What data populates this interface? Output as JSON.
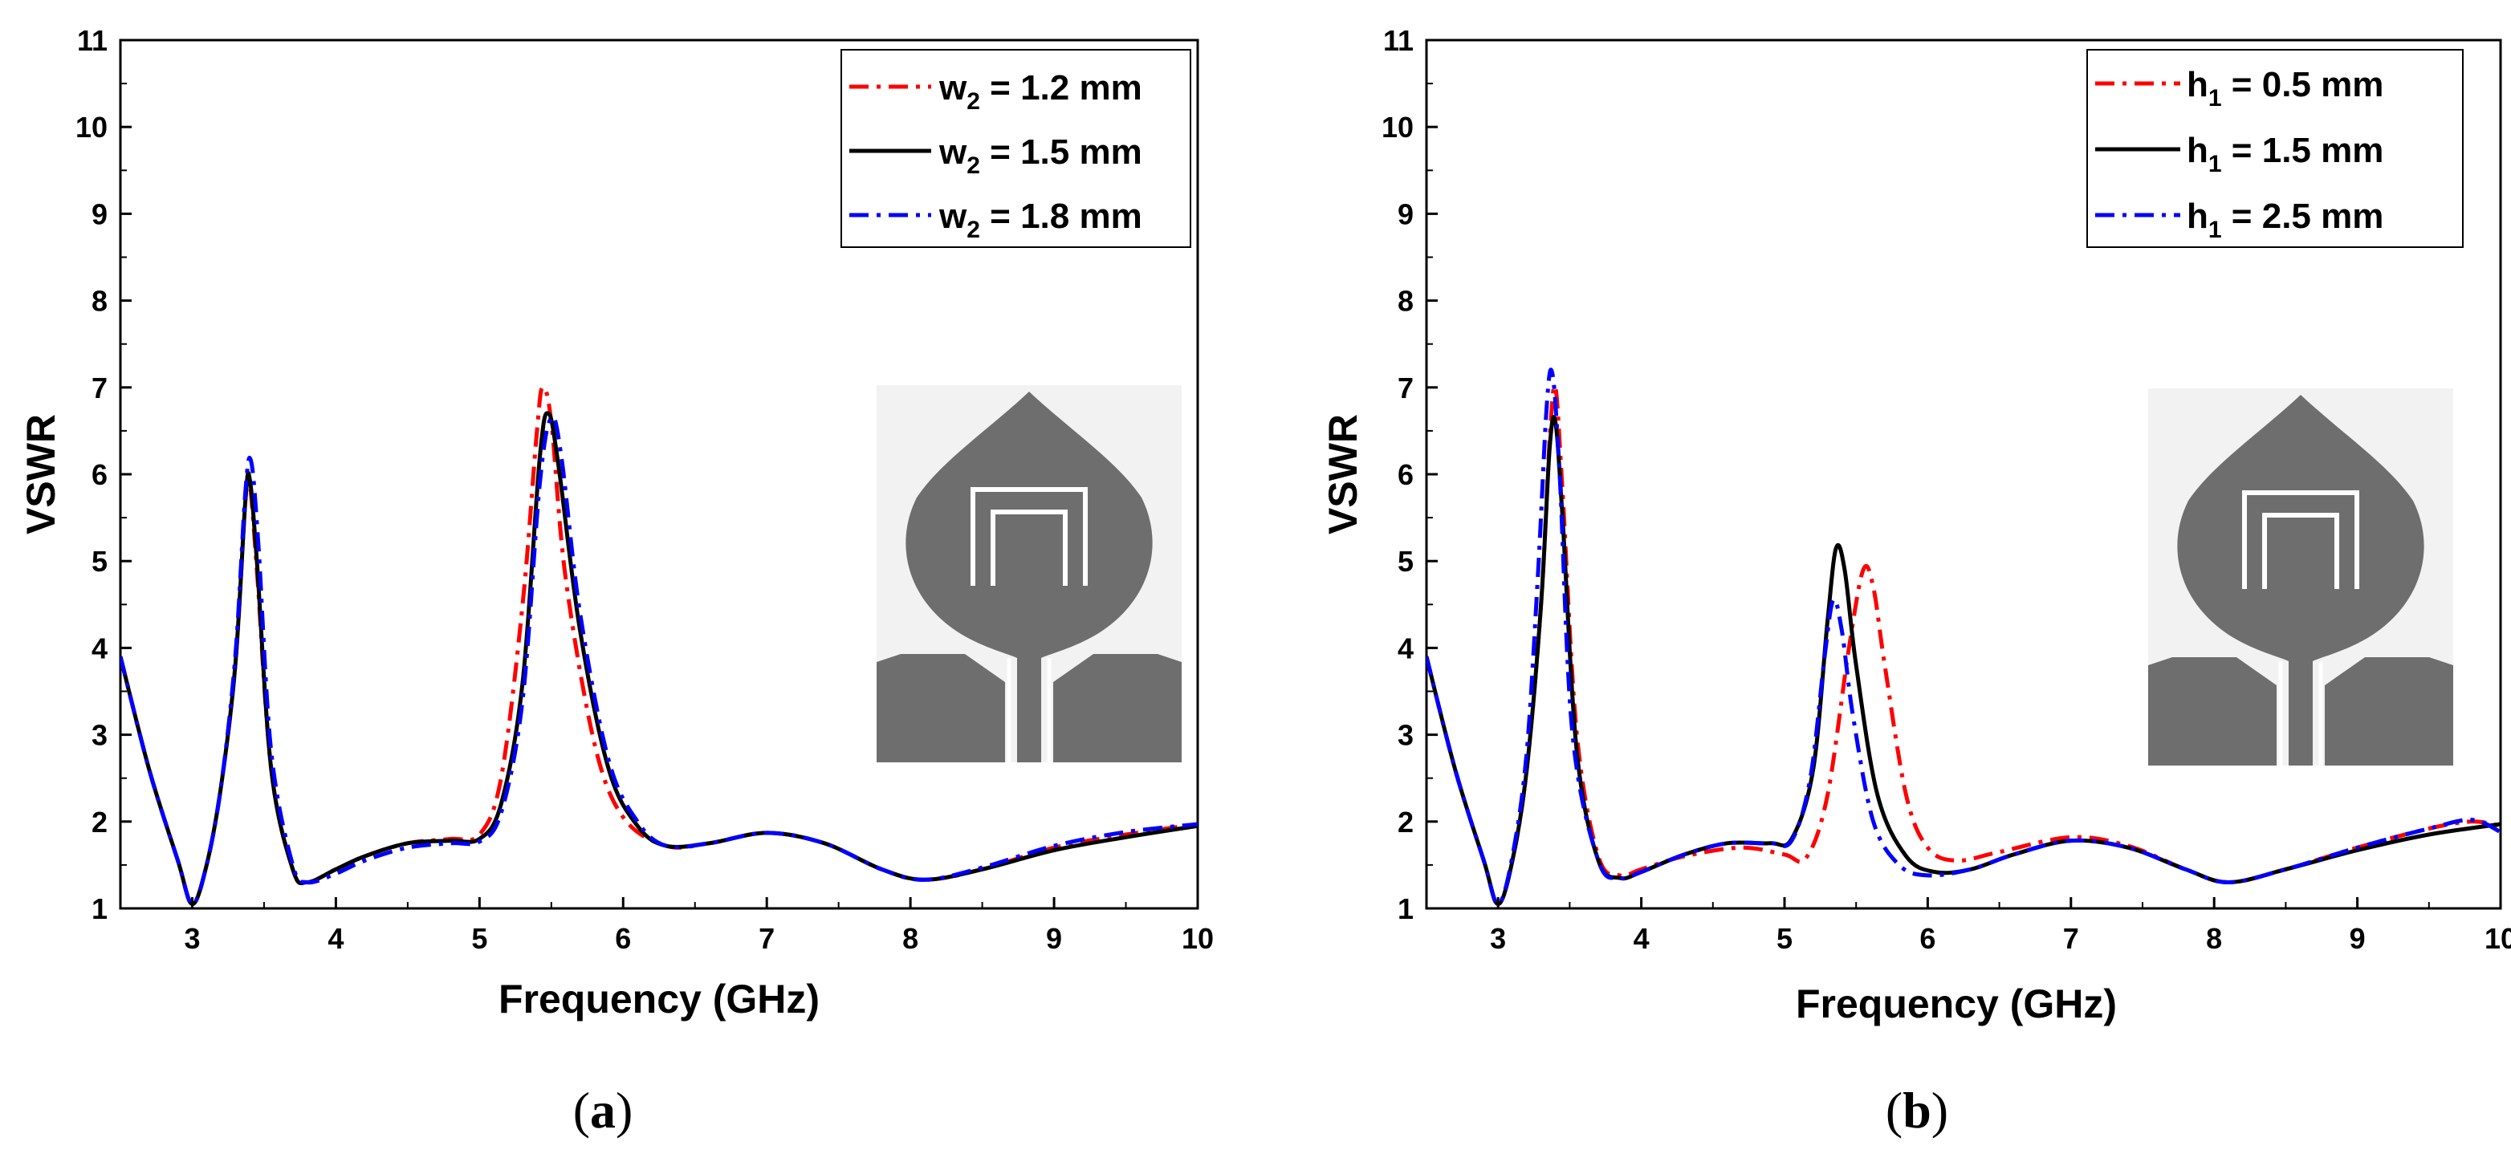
{
  "chart_data": [
    {
      "type": "line",
      "caption_open": "(",
      "caption_letter": "a",
      "caption_close": ")",
      "xlabel": "Frequency (GHz)",
      "ylabel": "VSWR",
      "xlim": [
        2.5,
        10
      ],
      "ylim": [
        1,
        11
      ],
      "xticks": [
        3,
        4,
        5,
        6,
        7,
        8,
        9,
        10
      ],
      "yticks": [
        1,
        2,
        3,
        4,
        5,
        6,
        7,
        8,
        9,
        10,
        11
      ],
      "legend_position": "top-right",
      "inset": "antenna-geometry",
      "series": [
        {
          "name": "w2 = 1.2 mm",
          "legend_main": "w",
          "legend_sub": "2",
          "legend_rest": " = 1.2 mm",
          "color": "#ff0000",
          "style": "dash-dot",
          "x": [
            2.5,
            2.7,
            2.9,
            3.0,
            3.1,
            3.2,
            3.3,
            3.37,
            3.4,
            3.45,
            3.55,
            3.7,
            3.8,
            4.0,
            4.2,
            4.5,
            4.8,
            5.0,
            5.15,
            5.3,
            5.4,
            5.44,
            5.5,
            5.6,
            5.8,
            6.0,
            6.3,
            6.6,
            7.0,
            7.4,
            7.8,
            8.1,
            8.5,
            9.0,
            9.5,
            10.0
          ],
          "y": [
            3.9,
            2.6,
            1.55,
            1.05,
            1.5,
            2.4,
            3.8,
            5.7,
            5.9,
            4.9,
            2.6,
            1.45,
            1.3,
            1.45,
            1.6,
            1.75,
            1.8,
            1.85,
            2.5,
            4.5,
            6.5,
            7.0,
            6.6,
            4.8,
            2.9,
            2.05,
            1.72,
            1.75,
            1.87,
            1.75,
            1.45,
            1.33,
            1.45,
            1.7,
            1.85,
            1.97
          ]
        },
        {
          "name": "w2 = 1.5 mm",
          "legend_main": "w",
          "legend_sub": "2",
          "legend_rest": " = 1.5 mm",
          "color": "#000000",
          "style": "solid",
          "x": [
            2.5,
            2.7,
            2.9,
            3.0,
            3.1,
            3.2,
            3.3,
            3.37,
            3.4,
            3.45,
            3.55,
            3.7,
            3.8,
            4.0,
            4.2,
            4.5,
            4.8,
            5.0,
            5.15,
            5.3,
            5.42,
            5.48,
            5.55,
            5.7,
            5.9,
            6.1,
            6.3,
            6.6,
            7.0,
            7.4,
            7.8,
            8.1,
            8.5,
            9.0,
            9.5,
            10.0
          ],
          "y": [
            3.9,
            2.6,
            1.55,
            1.05,
            1.5,
            2.4,
            3.8,
            5.7,
            5.95,
            5.0,
            2.6,
            1.45,
            1.3,
            1.45,
            1.6,
            1.75,
            1.78,
            1.8,
            2.2,
            3.6,
            6.2,
            6.7,
            6.1,
            4.2,
            2.6,
            1.95,
            1.72,
            1.75,
            1.87,
            1.75,
            1.45,
            1.33,
            1.45,
            1.67,
            1.82,
            1.95
          ]
        },
        {
          "name": "w2 = 1.8 mm",
          "legend_main": "w",
          "legend_sub": "2",
          "legend_rest": " = 1.8 mm",
          "color": "#0000ff",
          "style": "dash-dot",
          "x": [
            2.5,
            2.7,
            2.9,
            3.0,
            3.1,
            3.2,
            3.3,
            3.37,
            3.41,
            3.46,
            3.55,
            3.7,
            3.8,
            4.0,
            4.2,
            4.5,
            4.8,
            5.0,
            5.15,
            5.3,
            5.42,
            5.5,
            5.57,
            5.7,
            5.9,
            6.1,
            6.3,
            6.6,
            7.0,
            7.4,
            7.8,
            8.1,
            8.5,
            9.0,
            9.5,
            10.0
          ],
          "y": [
            3.9,
            2.6,
            1.55,
            1.05,
            1.5,
            2.4,
            3.9,
            5.8,
            6.15,
            5.2,
            2.8,
            1.5,
            1.3,
            1.4,
            1.55,
            1.7,
            1.75,
            1.77,
            2.1,
            3.4,
            5.9,
            6.65,
            6.2,
            4.4,
            2.7,
            2.0,
            1.72,
            1.75,
            1.87,
            1.75,
            1.45,
            1.33,
            1.47,
            1.72,
            1.88,
            1.97
          ]
        }
      ]
    },
    {
      "type": "line",
      "caption_open": "(",
      "caption_letter": "b",
      "caption_close": ")",
      "xlabel": "Frequency (GHz)",
      "ylabel": "VSWR",
      "xlim": [
        2.5,
        10
      ],
      "ylim": [
        1,
        11
      ],
      "xticks": [
        3,
        4,
        5,
        6,
        7,
        8,
        9,
        10
      ],
      "yticks": [
        1,
        2,
        3,
        4,
        5,
        6,
        7,
        8,
        9,
        10,
        11
      ],
      "legend_position": "top-right",
      "inset": "antenna-geometry",
      "series": [
        {
          "name": "h1 = 0.5 mm",
          "legend_main": "h",
          "legend_sub": "1",
          "legend_rest": " = 0.5 mm",
          "color": "#ff0000",
          "style": "dash-dot",
          "x": [
            2.5,
            2.7,
            2.9,
            3.0,
            3.1,
            3.2,
            3.3,
            3.36,
            3.4,
            3.45,
            3.55,
            3.7,
            3.85,
            4.0,
            4.3,
            4.7,
            5.0,
            5.15,
            5.3,
            5.45,
            5.55,
            5.62,
            5.7,
            5.85,
            6.0,
            6.2,
            6.5,
            7.0,
            7.4,
            7.8,
            8.1,
            8.5,
            9.0,
            9.5,
            9.8,
            10.0
          ],
          "y": [
            3.9,
            2.6,
            1.55,
            1.05,
            1.55,
            2.6,
            4.5,
            6.4,
            7.0,
            5.8,
            3.0,
            1.6,
            1.38,
            1.45,
            1.6,
            1.7,
            1.62,
            1.58,
            2.3,
            4.0,
            4.9,
            4.7,
            3.8,
            2.3,
            1.7,
            1.55,
            1.65,
            1.82,
            1.72,
            1.45,
            1.3,
            1.45,
            1.7,
            1.92,
            2.0,
            1.95
          ]
        },
        {
          "name": "h1 = 1.5 mm",
          "legend_main": "h",
          "legend_sub": "1",
          "legend_rest": " = 1.5 mm",
          "color": "#000000",
          "style": "solid",
          "x": [
            2.5,
            2.7,
            2.9,
            3.0,
            3.1,
            3.2,
            3.3,
            3.36,
            3.4,
            3.45,
            3.55,
            3.7,
            3.85,
            4.0,
            4.3,
            4.6,
            4.9,
            5.05,
            5.2,
            5.3,
            5.36,
            5.42,
            5.5,
            5.65,
            5.85,
            6.05,
            6.3,
            6.6,
            7.0,
            7.4,
            7.8,
            8.1,
            8.5,
            9.0,
            9.5,
            10.0
          ],
          "y": [
            3.9,
            2.6,
            1.55,
            1.05,
            1.55,
            2.6,
            4.5,
            6.3,
            6.6,
            5.5,
            2.8,
            1.55,
            1.35,
            1.42,
            1.62,
            1.75,
            1.75,
            1.8,
            2.6,
            4.3,
            5.15,
            4.9,
            3.8,
            2.3,
            1.6,
            1.42,
            1.45,
            1.62,
            1.78,
            1.7,
            1.45,
            1.3,
            1.45,
            1.67,
            1.85,
            1.97
          ]
        },
        {
          "name": "h1 = 2.5 mm",
          "legend_main": "h",
          "legend_sub": "1",
          "legend_rest": " = 2.5 mm",
          "color": "#0000ff",
          "style": "dash-dot",
          "x": [
            2.5,
            2.7,
            2.9,
            3.0,
            3.1,
            3.2,
            3.28,
            3.34,
            3.38,
            3.43,
            3.52,
            3.7,
            3.85,
            4.0,
            4.3,
            4.6,
            4.9,
            5.05,
            5.18,
            5.28,
            5.34,
            5.4,
            5.48,
            5.62,
            5.8,
            6.0,
            6.3,
            6.6,
            7.0,
            7.4,
            7.8,
            8.1,
            8.5,
            9.0,
            9.5,
            9.8,
            10.0
          ],
          "y": [
            3.9,
            2.6,
            1.55,
            1.05,
            1.6,
            2.8,
            4.9,
            6.8,
            7.15,
            6.0,
            3.0,
            1.55,
            1.35,
            1.42,
            1.62,
            1.75,
            1.75,
            1.78,
            2.5,
            3.9,
            4.55,
            4.2,
            3.2,
            2.0,
            1.5,
            1.38,
            1.45,
            1.62,
            1.78,
            1.7,
            1.45,
            1.3,
            1.45,
            1.7,
            1.92,
            2.02,
            1.88
          ]
        }
      ]
    }
  ]
}
